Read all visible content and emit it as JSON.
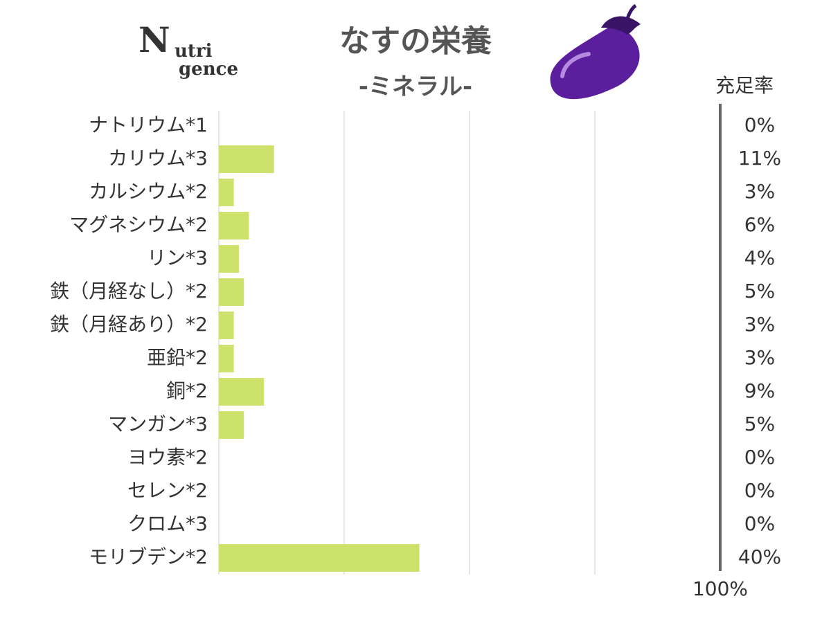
{
  "logo": {
    "parts": [
      "N",
      "utri",
      "gence"
    ]
  },
  "chart_data": {
    "type": "barh",
    "title": "なすの栄養",
    "subtitle": "-ミネラル-",
    "value_header": "充足率",
    "categories": [
      "ナトリウム*1",
      "カリウム*3",
      "カルシウム*2",
      "マグネシウム*2",
      "リン*3",
      "鉄（月経なし）*2",
      "鉄（月経あり）*2",
      "亜鉛*2",
      "銅*2",
      "マンガン*3",
      "ヨウ素*2",
      "セレン*2",
      "クロム*3",
      "モリブデン*2"
    ],
    "values": [
      0,
      11,
      3,
      6,
      4,
      5,
      3,
      3,
      9,
      5,
      0,
      0,
      0,
      40
    ],
    "value_labels": [
      "0%",
      "11%",
      "3%",
      "6%",
      "4%",
      "5%",
      "3%",
      "3%",
      "9%",
      "5%",
      "0%",
      "0%",
      "0%",
      "40%"
    ],
    "color": "#cde26a",
    "xlim": [
      0,
      100
    ],
    "xticks": [
      {
        "value": 100,
        "label": "100%"
      }
    ],
    "grid_lines": [
      0,
      25,
      50,
      75
    ],
    "grid": true
  }
}
